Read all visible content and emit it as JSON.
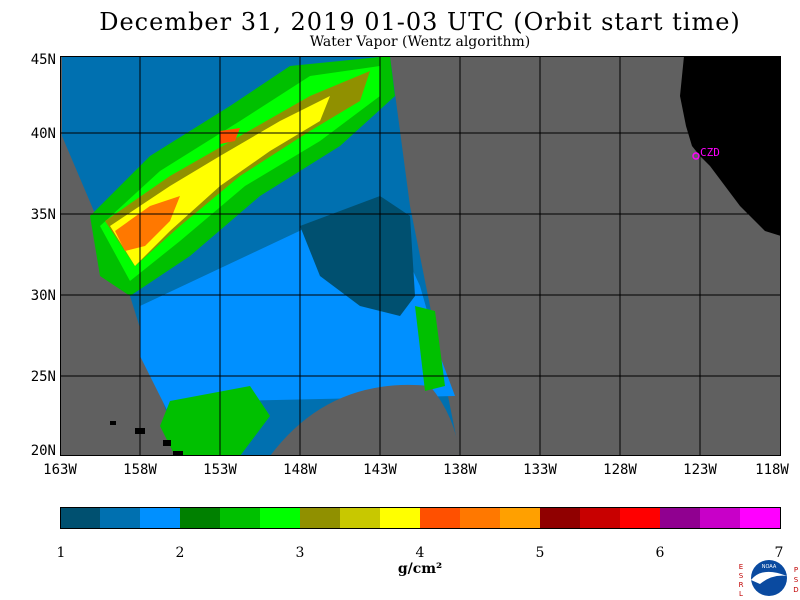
{
  "title": "December 31, 2019  01-03 UTC  (Orbit start time)",
  "subtitle": "Water Vapor (Wentz algorithm)",
  "map": {
    "lat_labels": [
      "45N",
      "40N",
      "35N",
      "30N",
      "25N",
      "20N"
    ],
    "lon_labels": [
      "163W",
      "158W",
      "153W",
      "148W",
      "143W",
      "138W",
      "133W",
      "128W",
      "123W",
      "118W"
    ],
    "station_label": "CZD",
    "colors": {
      "land": "#000000",
      "no_data": "#606060",
      "grid": "#000000",
      "station": "#ff00ff"
    }
  },
  "colorbar": {
    "tick_labels": [
      "1",
      "2",
      "3",
      "4",
      "5",
      "6",
      "7"
    ],
    "units": "g/cm²",
    "colors": [
      "#005070",
      "#0070b0",
      "#0090ff",
      "#008000",
      "#00c000",
      "#00ff00",
      "#909000",
      "#c8c800",
      "#ffff00",
      "#ff5000",
      "#ff7800",
      "#ffa000",
      "#900000",
      "#c80000",
      "#ff0000",
      "#900090",
      "#c800c8",
      "#ff00ff"
    ]
  },
  "logo": {
    "left_letters": "ESRL",
    "right_letters": "PSD",
    "center": "NOAA"
  }
}
